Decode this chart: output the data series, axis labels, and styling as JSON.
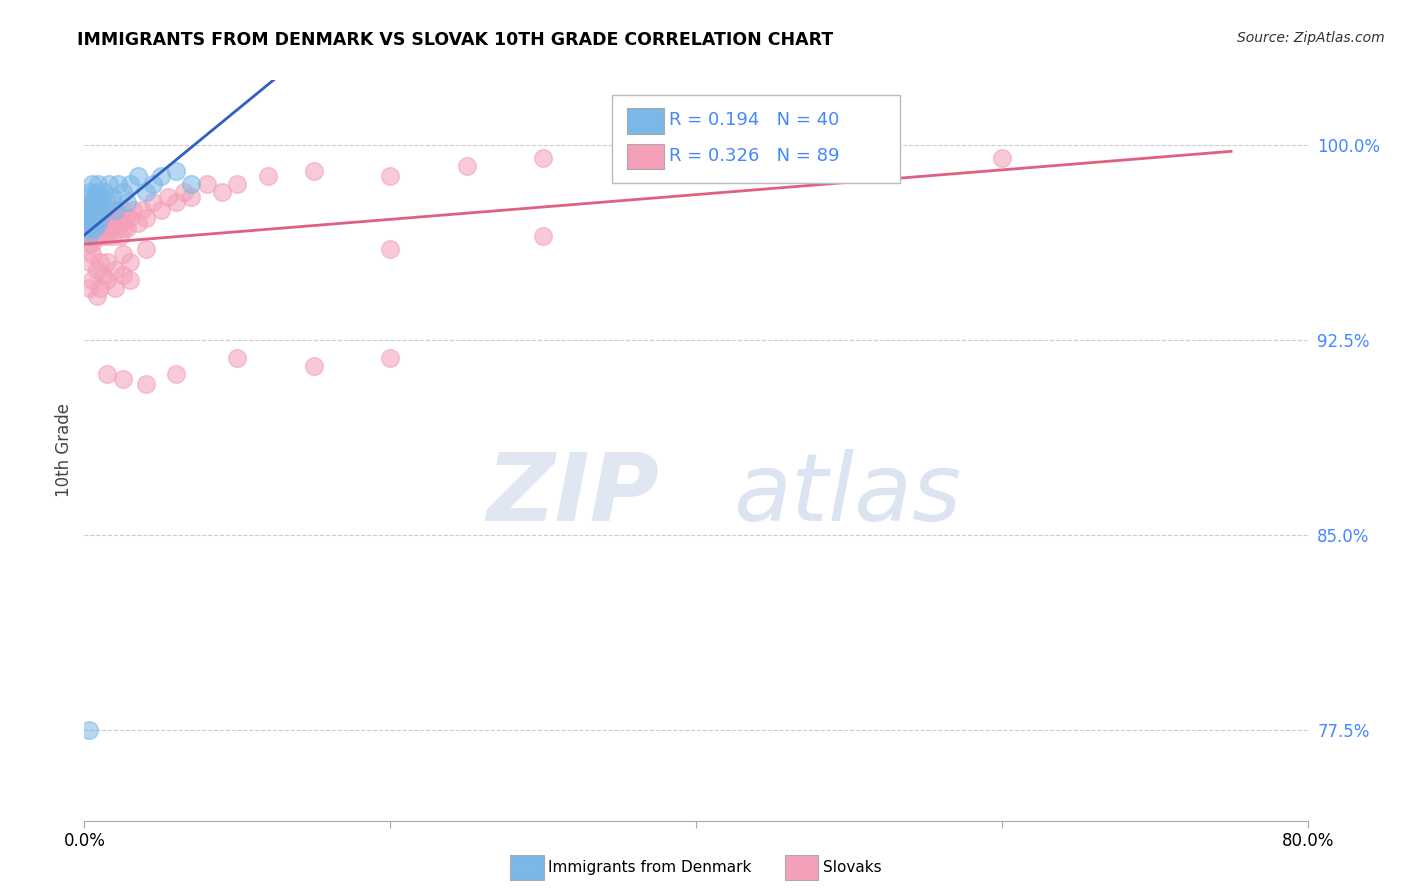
{
  "title": "IMMIGRANTS FROM DENMARK VS SLOVAK 10TH GRADE CORRELATION CHART",
  "source": "Source: ZipAtlas.com",
  "ylabel": "10th Grade",
  "ytick_labels": [
    "100.0%",
    "92.5%",
    "85.0%",
    "77.5%"
  ],
  "ytick_values": [
    1.0,
    0.925,
    0.85,
    0.775
  ],
  "xlim": [
    0.0,
    0.8
  ],
  "ylim": [
    0.74,
    1.025
  ],
  "legend1_r": "0.194",
  "legend1_n": "40",
  "legend2_r": "0.326",
  "legend2_n": "89",
  "color_blue": "#7ab8e8",
  "color_pink": "#f4a0b8",
  "color_blue_line": "#3060c0",
  "color_pink_line": "#e06080",
  "color_ytick": "#4488ff",
  "color_grid": "#cccccc",
  "dk_x": [
    0.001,
    0.002,
    0.002,
    0.003,
    0.003,
    0.003,
    0.004,
    0.004,
    0.004,
    0.005,
    0.005,
    0.005,
    0.006,
    0.006,
    0.007,
    0.007,
    0.008,
    0.008,
    0.009,
    0.009,
    0.01,
    0.01,
    0.011,
    0.012,
    0.013,
    0.015,
    0.016,
    0.018,
    0.02,
    0.022,
    0.025,
    0.028,
    0.03,
    0.035,
    0.04,
    0.045,
    0.05,
    0.06,
    0.07,
    0.003
  ],
  "dk_y": [
    0.972,
    0.968,
    0.975,
    0.97,
    0.965,
    0.98,
    0.975,
    0.968,
    0.982,
    0.978,
    0.972,
    0.985,
    0.97,
    0.975,
    0.968,
    0.98,
    0.975,
    0.982,
    0.97,
    0.985,
    0.978,
    0.972,
    0.98,
    0.975,
    0.982,
    0.978,
    0.985,
    0.98,
    0.975,
    0.985,
    0.982,
    0.978,
    0.985,
    0.988,
    0.982,
    0.985,
    0.988,
    0.99,
    0.985,
    0.775
  ],
  "sk_x": [
    0.001,
    0.002,
    0.002,
    0.003,
    0.003,
    0.003,
    0.004,
    0.004,
    0.005,
    0.005,
    0.005,
    0.006,
    0.006,
    0.007,
    0.007,
    0.008,
    0.008,
    0.009,
    0.009,
    0.01,
    0.01,
    0.011,
    0.011,
    0.012,
    0.013,
    0.014,
    0.015,
    0.015,
    0.016,
    0.017,
    0.018,
    0.019,
    0.02,
    0.021,
    0.022,
    0.023,
    0.024,
    0.025,
    0.026,
    0.027,
    0.028,
    0.03,
    0.032,
    0.035,
    0.038,
    0.04,
    0.045,
    0.05,
    0.055,
    0.06,
    0.065,
    0.07,
    0.08,
    0.09,
    0.1,
    0.12,
    0.15,
    0.2,
    0.25,
    0.3,
    0.003,
    0.005,
    0.008,
    0.01,
    0.012,
    0.015,
    0.02,
    0.025,
    0.03,
    0.04,
    0.003,
    0.005,
    0.008,
    0.01,
    0.015,
    0.02,
    0.025,
    0.03,
    0.2,
    0.3,
    0.015,
    0.025,
    0.04,
    0.06,
    0.1,
    0.15,
    0.2,
    0.5,
    0.6
  ],
  "sk_y": [
    0.968,
    0.965,
    0.975,
    0.962,
    0.97,
    0.978,
    0.965,
    0.972,
    0.968,
    0.975,
    0.962,
    0.97,
    0.978,
    0.965,
    0.975,
    0.968,
    0.972,
    0.965,
    0.975,
    0.968,
    0.972,
    0.965,
    0.978,
    0.968,
    0.972,
    0.965,
    0.97,
    0.978,
    0.968,
    0.972,
    0.965,
    0.97,
    0.975,
    0.968,
    0.972,
    0.965,
    0.97,
    0.975,
    0.968,
    0.972,
    0.968,
    0.972,
    0.975,
    0.97,
    0.975,
    0.972,
    0.978,
    0.975,
    0.98,
    0.978,
    0.982,
    0.98,
    0.985,
    0.982,
    0.985,
    0.988,
    0.99,
    0.988,
    0.992,
    0.995,
    0.955,
    0.958,
    0.952,
    0.955,
    0.95,
    0.955,
    0.952,
    0.958,
    0.955,
    0.96,
    0.945,
    0.948,
    0.942,
    0.945,
    0.948,
    0.945,
    0.95,
    0.948,
    0.96,
    0.965,
    0.912,
    0.91,
    0.908,
    0.912,
    0.918,
    0.915,
    0.918,
    0.992,
    0.995
  ]
}
